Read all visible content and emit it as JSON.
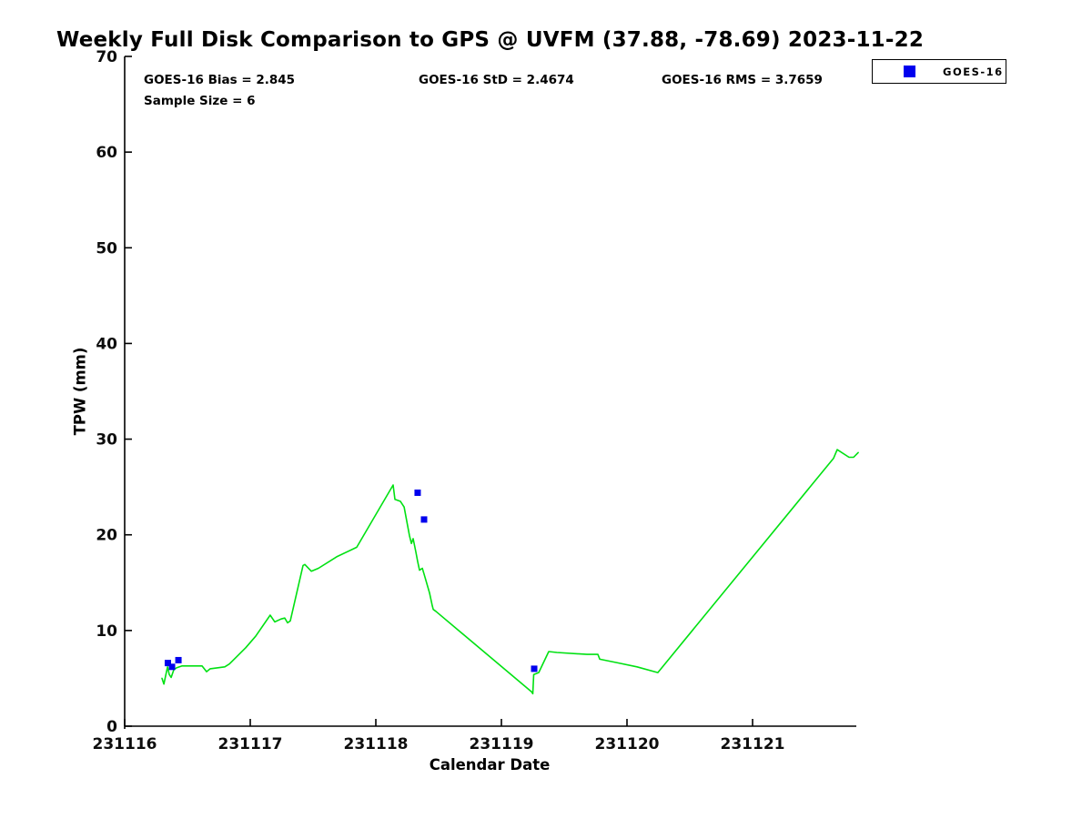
{
  "figure": {
    "title": "Weekly Full Disk Comparison to GPS @ UVFM (37.88, -78.69) 2023-11-22",
    "annotations": {
      "bias": "GOES-16 Bias = 2.845",
      "std": "GOES-16 StD = 2.4674",
      "rms": "GOES-16 RMS = 3.7659",
      "sample_size": "Sample Size = 6"
    },
    "legend": {
      "entries": [
        {
          "label": "GOES-16",
          "marker": "square",
          "color": "#0000EE"
        }
      ]
    }
  },
  "chart_data": {
    "type": "line",
    "title": "Weekly Full Disk Comparison to GPS @ UVFM (37.88, -78.69) 2023-11-22",
    "xlabel": "Calendar Date",
    "ylabel": "TPW (mm)",
    "xlim": [
      231116,
      231121.84
    ],
    "ylim": [
      0,
      70
    ],
    "xticks": [
      231116,
      231117,
      231118,
      231119,
      231120,
      231121
    ],
    "yticks": [
      0,
      10,
      20,
      30,
      40,
      50,
      60,
      70
    ],
    "grid": false,
    "legend_position": "top-right",
    "stats": {
      "goes16_bias": 2.845,
      "goes16_std": 2.4674,
      "goes16_rms": 3.7659,
      "sample_size": 6
    },
    "series": [
      {
        "name": "GPS",
        "type": "line",
        "color": "#00E112",
        "points": [
          [
            231116.297,
            5.0
          ],
          [
            231116.312,
            4.4
          ],
          [
            231116.341,
            6.2
          ],
          [
            231116.355,
            5.4
          ],
          [
            231116.37,
            5.1
          ],
          [
            231116.391,
            5.9
          ],
          [
            231116.413,
            6.1
          ],
          [
            231116.457,
            6.3
          ],
          [
            231116.616,
            6.3
          ],
          [
            231116.652,
            5.7
          ],
          [
            231116.681,
            6.0
          ],
          [
            231116.797,
            6.2
          ],
          [
            231116.833,
            6.5
          ],
          [
            231116.964,
            8.2
          ],
          [
            231117.043,
            9.4
          ],
          [
            231117.159,
            11.6
          ],
          [
            231117.196,
            10.9
          ],
          [
            231117.246,
            11.2
          ],
          [
            231117.275,
            11.3
          ],
          [
            231117.297,
            10.8
          ],
          [
            231117.319,
            11.0
          ],
          [
            231117.42,
            16.8
          ],
          [
            231117.435,
            16.9
          ],
          [
            231117.486,
            16.2
          ],
          [
            231117.543,
            16.5
          ],
          [
            231117.688,
            17.7
          ],
          [
            231117.848,
            18.7
          ],
          [
            231118.138,
            25.2
          ],
          [
            231118.152,
            23.7
          ],
          [
            231118.196,
            23.5
          ],
          [
            231118.225,
            22.9
          ],
          [
            231118.268,
            19.9
          ],
          [
            231118.283,
            19.1
          ],
          [
            231118.297,
            19.6
          ],
          [
            231118.319,
            18.2
          ],
          [
            231118.333,
            17.2
          ],
          [
            231118.348,
            16.3
          ],
          [
            231118.37,
            16.5
          ],
          [
            231118.384,
            15.9
          ],
          [
            231118.428,
            13.9
          ],
          [
            231118.449,
            12.6
          ],
          [
            231118.457,
            12.2
          ],
          [
            231118.478,
            12.0
          ],
          [
            231119.239,
            3.6
          ],
          [
            231119.25,
            3.4
          ],
          [
            231119.257,
            5.4
          ],
          [
            231119.297,
            5.6
          ],
          [
            231119.377,
            7.8
          ],
          [
            231119.442,
            7.7
          ],
          [
            231119.681,
            7.5
          ],
          [
            231119.768,
            7.5
          ],
          [
            231119.783,
            7.0
          ],
          [
            231119.935,
            6.6
          ],
          [
            231120.08,
            6.2
          ],
          [
            231120.246,
            5.6
          ],
          [
            231121.645,
            28.0
          ],
          [
            231121.674,
            28.9
          ],
          [
            231121.768,
            28.1
          ],
          [
            231121.804,
            28.1
          ],
          [
            231121.841,
            28.6
          ]
        ]
      },
      {
        "name": "GOES-16",
        "type": "scatter",
        "marker": "square",
        "color": "#0000EE",
        "points": [
          [
            231116.344,
            6.6
          ],
          [
            231116.377,
            6.2
          ],
          [
            231116.428,
            6.9
          ],
          [
            231118.333,
            24.4
          ],
          [
            231118.384,
            21.6
          ],
          [
            231119.261,
            6.0
          ]
        ]
      }
    ]
  }
}
